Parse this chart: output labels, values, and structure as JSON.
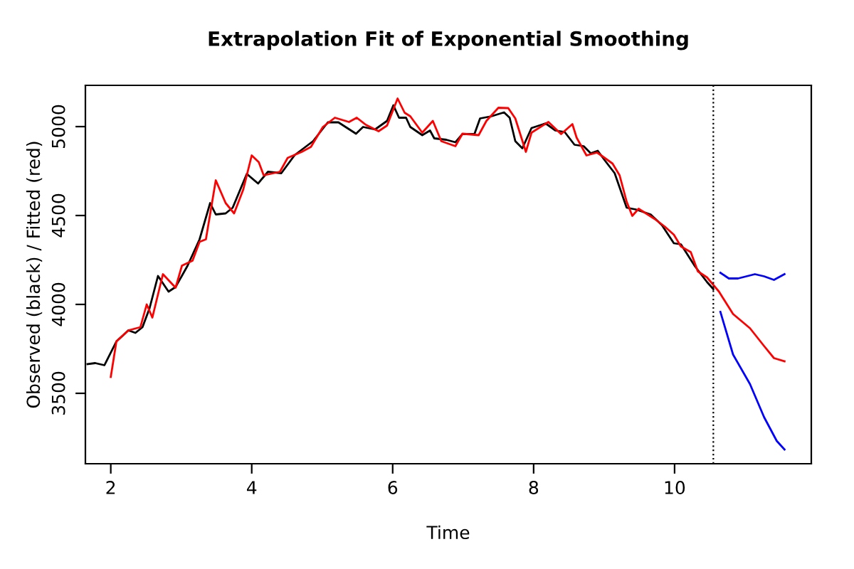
{
  "chart_data": {
    "type": "line",
    "title": "Extrapolation Fit of Exponential Smoothing",
    "xlabel": "Time",
    "ylabel": "Observed (black) / Fitted (red)",
    "xlim": [
      1.64,
      11.94
    ],
    "ylim": [
      3104,
      5232
    ],
    "xticks": [
      2,
      4,
      6,
      8,
      10
    ],
    "yticks": [
      3500,
      4000,
      4500,
      5000
    ],
    "grid": false,
    "line_style": "solid",
    "series": [
      {
        "color": "#000000",
        "x": [
          1.67,
          1.78,
          1.91,
          2.08,
          2.25,
          2.35,
          2.45,
          2.55,
          2.67,
          2.82,
          2.92,
          3.09,
          3.26,
          3.41,
          3.49,
          3.63,
          3.73,
          3.93,
          4.09,
          4.23,
          4.42,
          4.61,
          4.87,
          5.08,
          5.23,
          5.48,
          5.58,
          5.75,
          5.92,
          6.01,
          6.09,
          6.19,
          6.25,
          6.42,
          6.53,
          6.59,
          6.76,
          6.89,
          6.99,
          7.16,
          7.24,
          7.4,
          7.58,
          7.66,
          7.74,
          7.84,
          7.97,
          8.17,
          8.31,
          8.44,
          8.58,
          8.71,
          8.81,
          8.91,
          9.01,
          9.15,
          9.32,
          9.45,
          9.66,
          9.82,
          9.99,
          10.09,
          10.29,
          10.46,
          10.55
        ],
        "values": [
          3664,
          3670,
          3658,
          3792,
          3854,
          3840,
          3872,
          3978,
          4160,
          4072,
          4098,
          4218,
          4366,
          4570,
          4506,
          4512,
          4544,
          4734,
          4680,
          4746,
          4738,
          4840,
          4918,
          5024,
          5024,
          4960,
          4998,
          4984,
          5032,
          5120,
          5050,
          5050,
          4998,
          4952,
          4978,
          4934,
          4926,
          4912,
          4958,
          4958,
          5046,
          5058,
          5080,
          5050,
          4918,
          4878,
          4992,
          5018,
          4978,
          4970,
          4898,
          4890,
          4850,
          4864,
          4810,
          4738,
          4544,
          4534,
          4506,
          4446,
          4344,
          4338,
          4214,
          4126,
          4086
        ]
      },
      {
        "color": "#ff0000",
        "x": [
          2.0,
          2.08,
          2.25,
          2.42,
          2.51,
          2.59,
          2.74,
          2.92,
          3.01,
          3.16,
          3.26,
          3.35,
          3.49,
          3.63,
          3.75,
          3.88,
          4.0,
          4.1,
          4.17,
          4.4,
          4.51,
          4.71,
          4.84,
          5.01,
          5.18,
          5.38,
          5.49,
          5.62,
          5.8,
          5.92,
          6.07,
          6.17,
          6.25,
          6.42,
          6.57,
          6.69,
          6.89,
          6.99,
          7.22,
          7.33,
          7.5,
          7.64,
          7.74,
          7.89,
          7.97,
          8.21,
          8.39,
          8.55,
          8.61,
          8.75,
          8.9,
          8.98,
          9.12,
          9.22,
          9.32,
          9.4,
          9.49,
          9.72,
          9.86,
          9.99,
          10.09,
          10.23,
          10.33,
          10.46,
          10.63,
          10.83,
          11.07,
          11.27,
          11.41,
          11.56
        ],
        "values": [
          3592,
          3792,
          3854,
          3872,
          4000,
          3926,
          4170,
          4094,
          4218,
          4246,
          4352,
          4366,
          4698,
          4570,
          4512,
          4646,
          4838,
          4800,
          4726,
          4746,
          4824,
          4858,
          4886,
          4998,
          5050,
          5026,
          5050,
          5010,
          4974,
          5006,
          5158,
          5078,
          5058,
          4966,
          5032,
          4918,
          4890,
          4960,
          4952,
          5032,
          5106,
          5104,
          5046,
          4858,
          4966,
          5026,
          4958,
          5014,
          4938,
          4838,
          4854,
          4832,
          4792,
          4726,
          4578,
          4498,
          4538,
          4480,
          4438,
          4392,
          4326,
          4294,
          4186,
          4152,
          4072,
          3946,
          3866,
          3766,
          3698,
          3680
        ]
      },
      {
        "color": "#0000ff",
        "x": [
          10.65,
          10.77,
          10.9,
          11.14,
          11.27,
          11.41,
          11.56
        ],
        "values": [
          4178,
          4146,
          4146,
          4170,
          4158,
          4138,
          4170
        ]
      },
      {
        "color": "#0000ff",
        "x": [
          10.65,
          10.83,
          11.07,
          11.27,
          11.45,
          11.56
        ],
        "values": [
          3958,
          3718,
          3552,
          3366,
          3232,
          3184
        ]
      }
    ],
    "ref_lines": [
      {
        "axis": "x",
        "value": 10.55,
        "color": "#000000",
        "line_style": "dotted"
      }
    ]
  }
}
